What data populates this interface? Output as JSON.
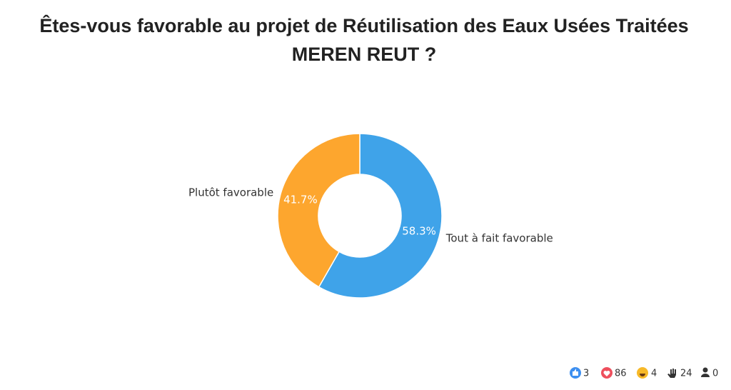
{
  "chart_data": {
    "type": "donut",
    "title": "Êtes-vous favorable au projet de Réutilisation des Eaux Usées Traitées MEREN REUT ?",
    "categories": [
      "Tout à fait favorable",
      "Plutôt favorable"
    ],
    "values": [
      58.3,
      41.7
    ],
    "value_labels": [
      "58.3%",
      "41.7%"
    ],
    "colors": [
      "#3fa3e9",
      "#fda62e"
    ]
  },
  "reactions": {
    "like": 3,
    "love": 86,
    "laugh": 4,
    "raised_hand": 24,
    "participants": 0
  }
}
